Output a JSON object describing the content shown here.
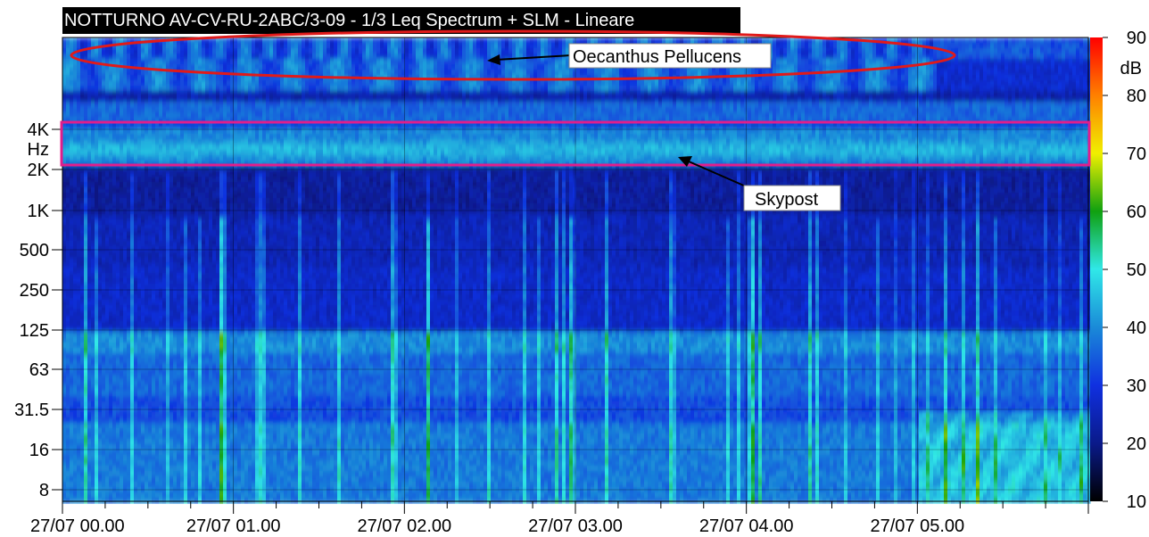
{
  "title": "NOTTURNO AV-CV-RU-2ABC/3-09  - 1/3 Leq Spectrum + SLM - Lineare",
  "chart_data": {
    "type": "heatmap",
    "title": "NOTTURNO AV-CV-RU-2ABC/3-09  - 1/3 Leq Spectrum + SLM - Lineare",
    "x_tick_labels": [
      "27/07 00.00",
      "27/07 01.00",
      "27/07 02.00",
      "27/07 03.00",
      "27/07 04.00",
      "27/07 05.00"
    ],
    "x_hours": [
      0,
      1,
      2,
      3,
      4,
      5
    ],
    "x_range_hours": [
      0,
      6
    ],
    "y_tick_labels": [
      "8",
      "16",
      "31.5",
      "63",
      "125",
      "250",
      "500",
      "1K",
      "2K",
      "4K"
    ],
    "y_unit_label": "Hz",
    "y_scale": "log",
    "colorbar": {
      "ticks": [
        "10",
        "20",
        "30",
        "40",
        "50",
        "60",
        "70",
        "80",
        "90"
      ],
      "unit": "dB",
      "range": [
        10,
        90
      ],
      "stops": [
        "#000000",
        "#0a1a8a",
        "#1030e0",
        "#1a8ad8",
        "#30e8e8",
        "#10a010",
        "#f0f000",
        "#ff8000",
        "#ff0000"
      ]
    },
    "annotations": [
      {
        "text": "Oecanthus Pellucens",
        "highlight": "red ellipse"
      },
      {
        "text": "Skypost",
        "highlight": "magenta rectangle"
      }
    ],
    "bands_approx_dB": [
      {
        "band": "above 5K",
        "level": 38
      },
      {
        "band": "2K-4K",
        "level": 42
      },
      {
        "band": "1K-2K",
        "level": 24
      },
      {
        "band": "160-1K",
        "level": 27
      },
      {
        "band": "100-125",
        "level": 40
      },
      {
        "band": "below 100",
        "level": 38
      }
    ]
  }
}
